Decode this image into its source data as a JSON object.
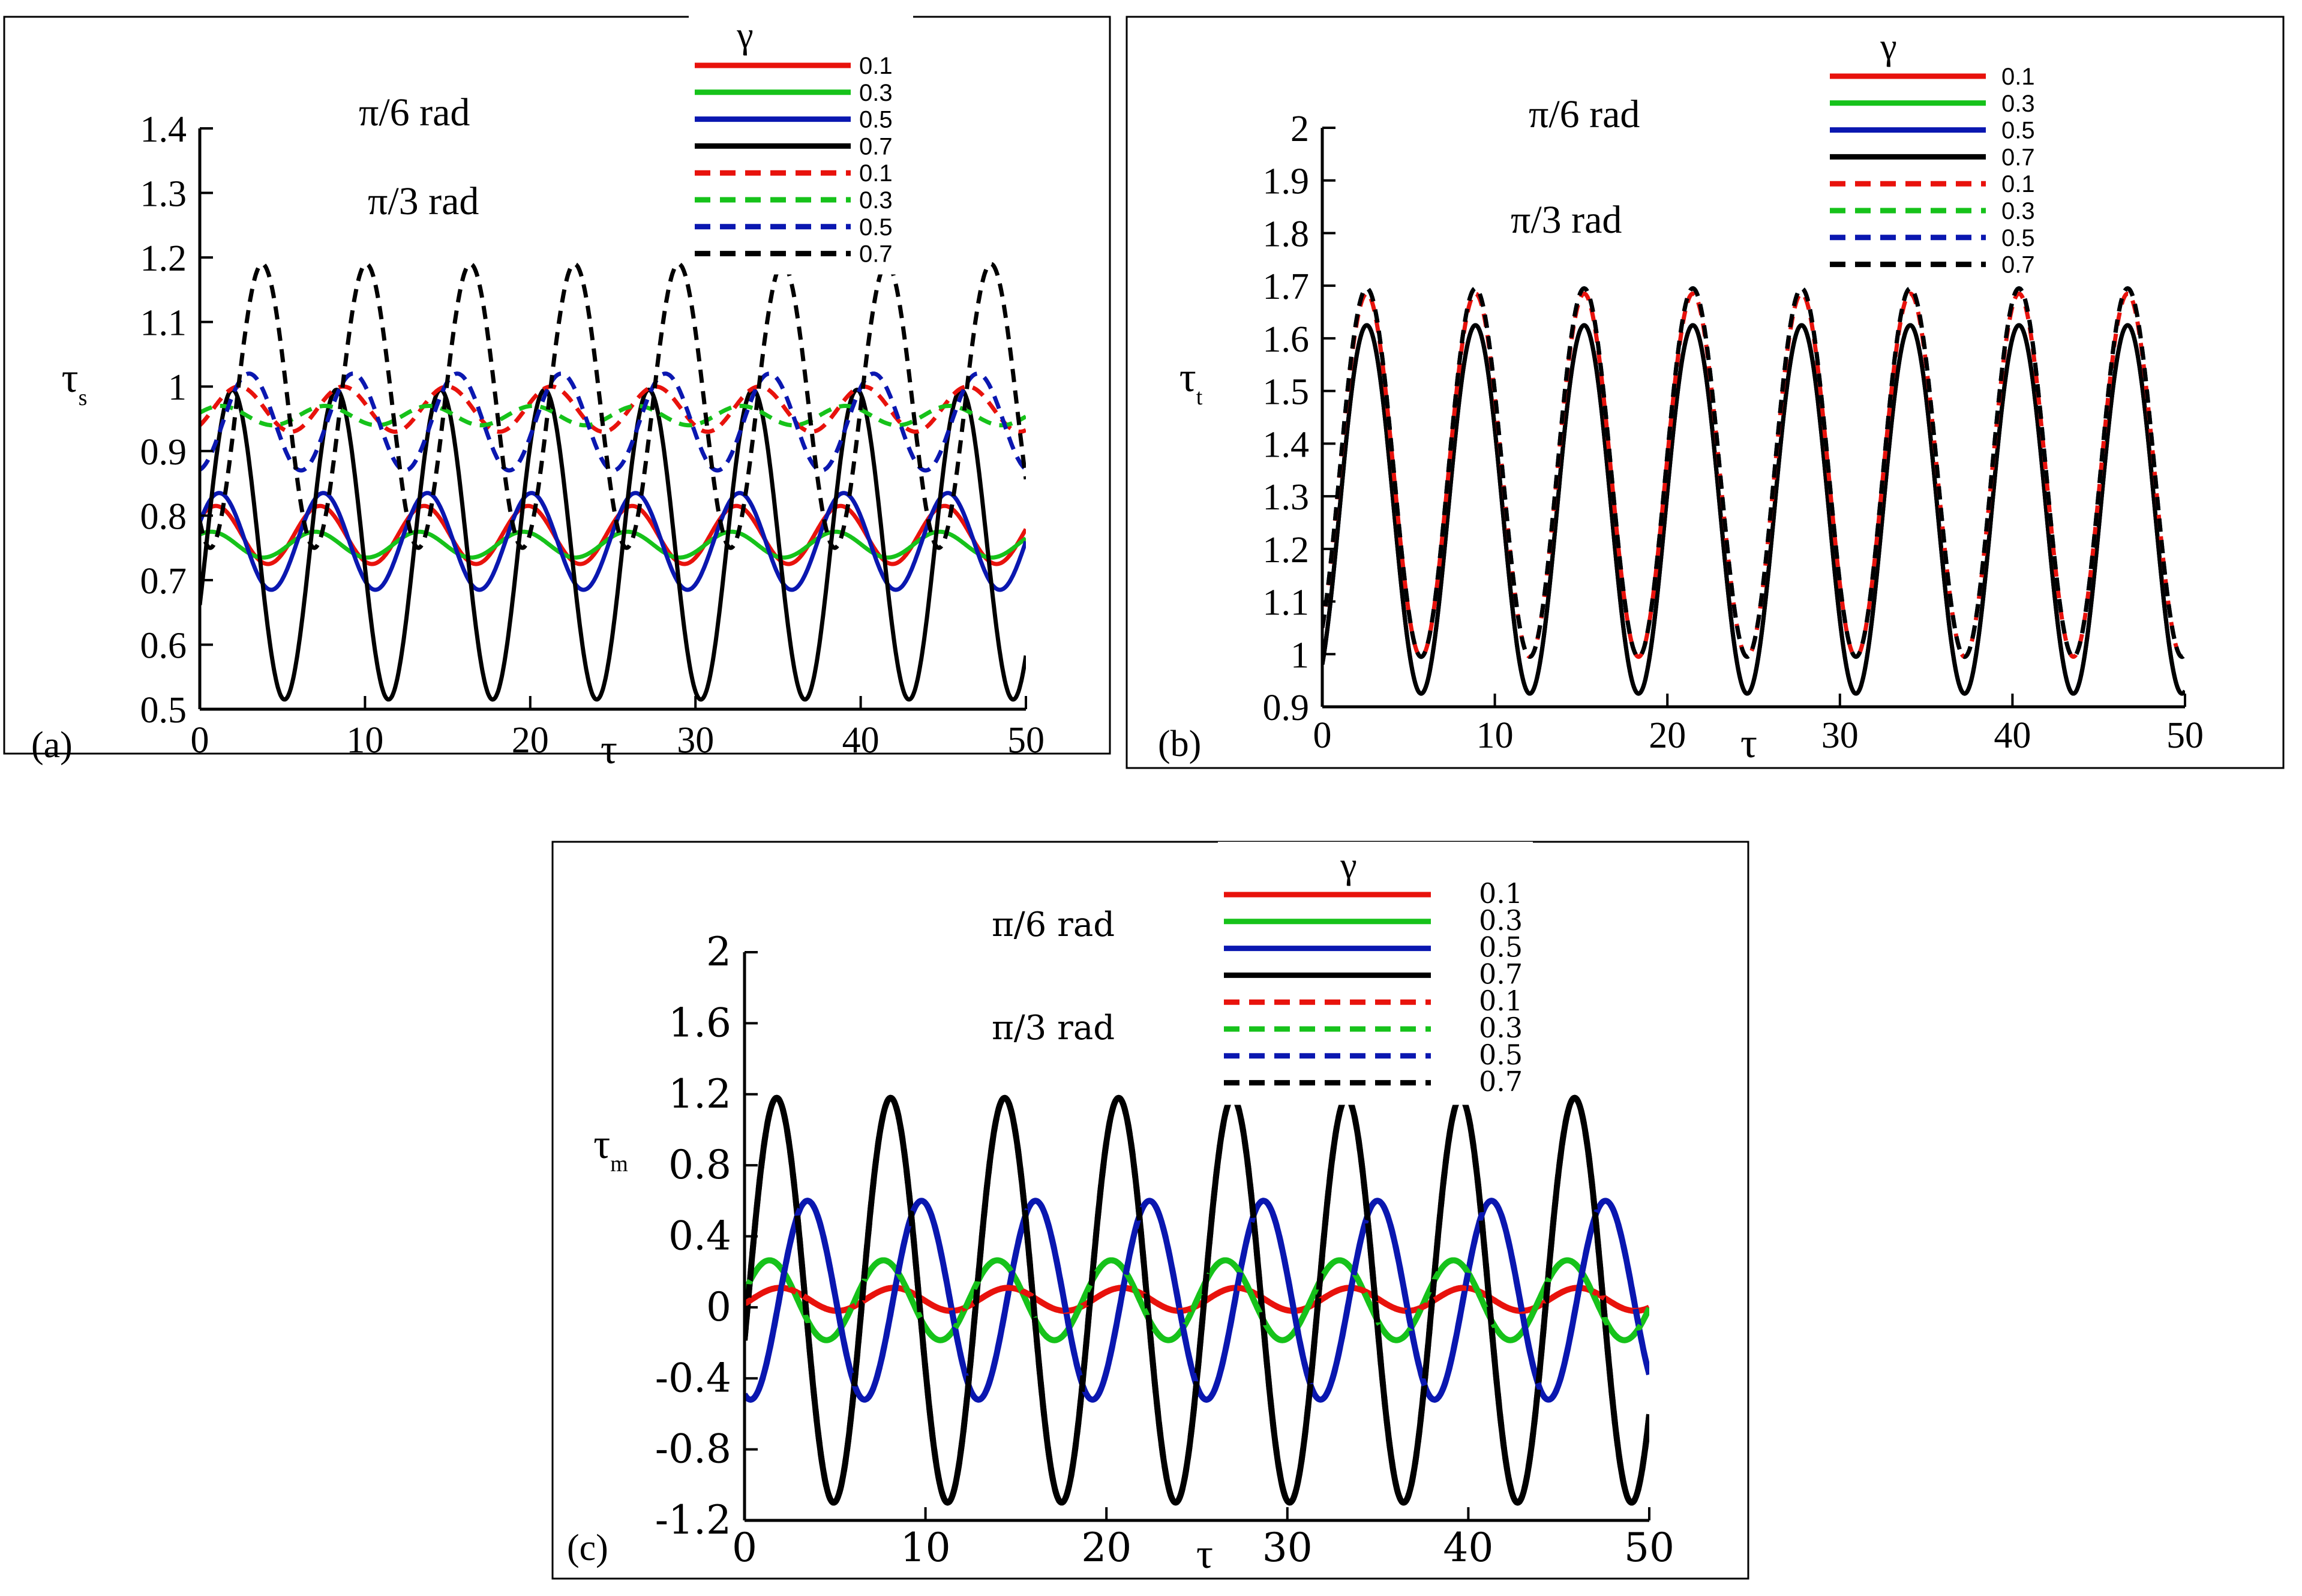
{
  "chart_data": [
    {
      "type": "line",
      "panel_label": "(a)",
      "xlabel": "τ",
      "ylabel_main": "τ",
      "ylabel_sub": "s",
      "xlim": [
        0,
        50
      ],
      "ylim": [
        0.5,
        1.4
      ],
      "xticks": [
        0,
        10,
        20,
        30,
        40,
        50
      ],
      "xtick_labels": [
        "0",
        "10",
        "20",
        "30",
        "40",
        "50"
      ],
      "yticks": [
        0.5,
        0.6,
        0.7,
        0.8,
        0.9,
        1.0,
        1.1,
        1.2,
        1.3,
        1.4
      ],
      "ytick_labels": [
        "0.5",
        "0.6",
        "0.7",
        "0.8",
        "0.9",
        "1",
        "1.1",
        "1.2",
        "1.3",
        "1.4"
      ],
      "annotations": [
        "π/6 rad",
        "π/3 rad"
      ],
      "legend_title": "γ",
      "period": 6.3,
      "series": [
        {
          "name": "0.1",
          "group": "π/6 rad",
          "style": "solid",
          "color": "#e8120c",
          "mean": 0.77,
          "amp": 0.045,
          "phase": 0.6
        },
        {
          "name": "0.3",
          "group": "π/6 rad",
          "style": "solid",
          "color": "#16c21a",
          "mean": 0.755,
          "amp": 0.02,
          "phase": 0.9
        },
        {
          "name": "0.5",
          "group": "π/6 rad",
          "style": "solid",
          "color": "#0a17b0",
          "mean": 0.76,
          "amp": 0.075,
          "phase": 0.4
        },
        {
          "name": "0.7",
          "group": "π/6 rad",
          "style": "solid",
          "color": "#000000",
          "mean": 0.755,
          "amp": 0.24,
          "phase": -0.4
        },
        {
          "name": "0.1",
          "group": "π/3 rad",
          "style": "dashed",
          "color": "#e8120c",
          "mean": 0.965,
          "amp": 0.035,
          "phase": -0.8
        },
        {
          "name": "0.3",
          "group": "π/3 rad",
          "style": "dashed",
          "color": "#16c21a",
          "mean": 0.955,
          "amp": 0.015,
          "phase": 0.3
        },
        {
          "name": "0.5",
          "group": "π/3 rad",
          "style": "dashed",
          "color": "#0a17b0",
          "mean": 0.945,
          "amp": 0.075,
          "phase": -1.4
        },
        {
          "name": "0.7",
          "group": "π/3 rad",
          "style": "dashed",
          "color": "#000000",
          "mean": 0.97,
          "amp": 0.22,
          "phase": -2.2
        }
      ]
    },
    {
      "type": "line",
      "panel_label": "(b)",
      "xlabel": "τ",
      "ylabel_main": "τ",
      "ylabel_sub": "t",
      "xlim": [
        0,
        50
      ],
      "ylim": [
        0.9,
        2.0
      ],
      "xticks": [
        0,
        10,
        20,
        30,
        40,
        50
      ],
      "xtick_labels": [
        "0",
        "10",
        "20",
        "30",
        "40",
        "50"
      ],
      "yticks": [
        0.9,
        1.0,
        1.1,
        1.2,
        1.3,
        1.4,
        1.5,
        1.6,
        1.7,
        1.8,
        1.9,
        2.0
      ],
      "ytick_labels": [
        "0.9",
        "1",
        "1.1",
        "1.2",
        "1.3",
        "1.4",
        "1.5",
        "1.6",
        "1.7",
        "1.8",
        "1.9",
        "2"
      ],
      "annotations": [
        "π/6 rad",
        "π/3 rad"
      ],
      "legend_title": "γ",
      "period": 6.3,
      "series": [
        {
          "name": "0.1",
          "group": "π/6 rad",
          "style": "solid",
          "color": "#e8120c",
          "mean": 1.275,
          "amp": 0.35,
          "phase": -1.0
        },
        {
          "name": "0.3",
          "group": "π/6 rad",
          "style": "solid",
          "color": "#16c21a",
          "mean": 1.275,
          "amp": 0.35,
          "phase": -1.0
        },
        {
          "name": "0.5",
          "group": "π/6 rad",
          "style": "solid",
          "color": "#0a17b0",
          "mean": 1.275,
          "amp": 0.35,
          "phase": -1.0
        },
        {
          "name": "0.7",
          "group": "π/6 rad",
          "style": "solid",
          "color": "#000000",
          "mean": 1.275,
          "amp": 0.35,
          "phase": -1.0
        },
        {
          "name": "0.1",
          "group": "π/3 rad",
          "style": "dashed",
          "color": "#e8120c",
          "mean": 1.34,
          "amp": 0.345,
          "phase": -1.0
        },
        {
          "name": "0.3",
          "group": "π/3 rad",
          "style": "dashed",
          "color": "#16c21a",
          "mean": 1.345,
          "amp": 0.35,
          "phase": -1.0
        },
        {
          "name": "0.5",
          "group": "π/3 rad",
          "style": "dashed",
          "color": "#0a17b0",
          "mean": 1.345,
          "amp": 0.35,
          "phase": -1.0
        },
        {
          "name": "0.7",
          "group": "π/3 rad",
          "style": "dashed",
          "color": "#000000",
          "mean": 1.345,
          "amp": 0.35,
          "phase": -1.0
        }
      ]
    },
    {
      "type": "line",
      "panel_label": "(c)",
      "xlabel": "τ",
      "ylabel_main": "τ",
      "ylabel_sub": "m",
      "xlim": [
        0,
        50
      ],
      "ylim": [
        -1.2,
        2.0
      ],
      "xticks": [
        0,
        10,
        20,
        30,
        40,
        50
      ],
      "xtick_labels": [
        "0",
        "10",
        "20",
        "30",
        "40",
        "50"
      ],
      "yticks": [
        -1.2,
        -0.8,
        -0.4,
        0,
        0.4,
        0.8,
        1.2,
        1.6,
        2.0
      ],
      "ytick_labels": [
        "-1.2",
        "-0.8",
        "-0.4",
        "0",
        "0.4",
        "0.8",
        "1.2",
        "1.6",
        "2"
      ],
      "annotations": [
        "π/6 rad",
        "π/3 rad"
      ],
      "legend_title": "γ",
      "period": 6.3,
      "series": [
        {
          "name": "0.1",
          "group": "π/6 rad",
          "style": "solid",
          "color": "#e8120c",
          "mean": 0.045,
          "amp": 0.065,
          "phase": -0.4
        },
        {
          "name": "0.3",
          "group": "π/6 rad",
          "style": "solid",
          "color": "#16c21a",
          "mean": 0.04,
          "amp": 0.225,
          "phase": 0.2
        },
        {
          "name": "0.5",
          "group": "π/6 rad",
          "style": "solid",
          "color": "#0a17b0",
          "mean": 0.04,
          "amp": 0.56,
          "phase": -1.9
        },
        {
          "name": "0.7",
          "group": "π/6 rad",
          "style": "solid",
          "color": "#000000",
          "mean": 0.04,
          "amp": 1.14,
          "phase": -0.2
        },
        {
          "name": "0.1",
          "group": "π/3 rad",
          "style": "dashed",
          "color": "#e8120c",
          "mean": 0.045,
          "amp": 0.065,
          "phase": -0.4
        },
        {
          "name": "0.3",
          "group": "π/3 rad",
          "style": "dashed",
          "color": "#16c21a",
          "mean": 0.04,
          "amp": 0.225,
          "phase": 0.2
        },
        {
          "name": "0.5",
          "group": "π/3 rad",
          "style": "dashed",
          "color": "#0a17b0",
          "mean": 0.04,
          "amp": 0.56,
          "phase": -1.9
        },
        {
          "name": "0.7",
          "group": "π/3 rad",
          "style": "dashed",
          "color": "#000000",
          "mean": 0.04,
          "amp": 1.14,
          "phase": -0.2
        }
      ]
    }
  ]
}
